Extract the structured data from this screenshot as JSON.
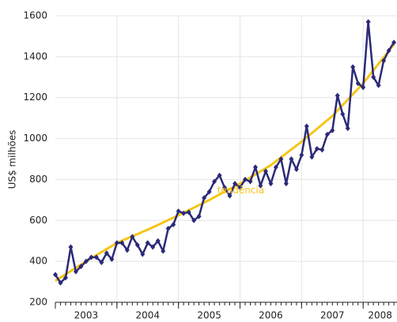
{
  "chart_data": {
    "type": "line",
    "y_label": "US$ milhões",
    "x": [
      2003,
      2003.083,
      2003.167,
      2003.25,
      2003.333,
      2003.417,
      2003.5,
      2003.583,
      2003.667,
      2003.75,
      2003.833,
      2003.917,
      2004,
      2004.083,
      2004.167,
      2004.25,
      2004.333,
      2004.417,
      2004.5,
      2004.583,
      2004.667,
      2004.75,
      2004.833,
      2004.917,
      2005,
      2005.083,
      2005.167,
      2005.25,
      2005.333,
      2005.417,
      2005.5,
      2005.583,
      2005.667,
      2005.75,
      2005.833,
      2005.917,
      2006,
      2006.083,
      2006.167,
      2006.25,
      2006.333,
      2006.417,
      2006.5,
      2006.583,
      2006.667,
      2006.75,
      2006.833,
      2006.917,
      2007,
      2007.083,
      2007.167,
      2007.25,
      2007.333,
      2007.417,
      2007.5,
      2007.583,
      2007.667,
      2007.75,
      2007.833,
      2007.917,
      2008,
      2008.083,
      2008.167,
      2008.25,
      2008.333,
      2008.417,
      2008.5
    ],
    "series": [
      {
        "color": "#2b2a78",
        "values": [
          335,
          295,
          320,
          470,
          350,
          375,
          400,
          420,
          420,
          395,
          440,
          410,
          490,
          490,
          455,
          520,
          480,
          435,
          490,
          470,
          500,
          450,
          560,
          580,
          645,
          635,
          640,
          600,
          620,
          710,
          740,
          790,
          820,
          760,
          720,
          780,
          760,
          800,
          790,
          860,
          770,
          840,
          780,
          860,
          900,
          780,
          900,
          850,
          920,
          1060,
          910,
          950,
          945,
          1020,
          1040,
          1210,
          1120,
          1050,
          1350,
          1270,
          1250,
          1570,
          1300,
          1260,
          1380,
          1430,
          1470
        ]
      },
      {
        "name": "tendência",
        "color": "#f5c518",
        "x": [
          2003,
          2003.5,
          2004,
          2004.5,
          2005,
          2005.5,
          2006,
          2006.5,
          2007,
          2007.5,
          2008,
          2008.5
        ],
        "values": [
          305,
          400,
          490,
          555,
          625,
          700,
          780,
          870,
          985,
          1110,
          1270,
          1460
        ]
      }
    ],
    "xlim": [
      2003,
      2008.55
    ],
    "xticks": [
      2003,
      2004,
      2005,
      2006,
      2007,
      2008
    ],
    "ylim": [
      200,
      1600
    ],
    "yticks": [
      200,
      400,
      600,
      800,
      1000,
      1200,
      1400,
      1600
    ],
    "grid": true
  }
}
